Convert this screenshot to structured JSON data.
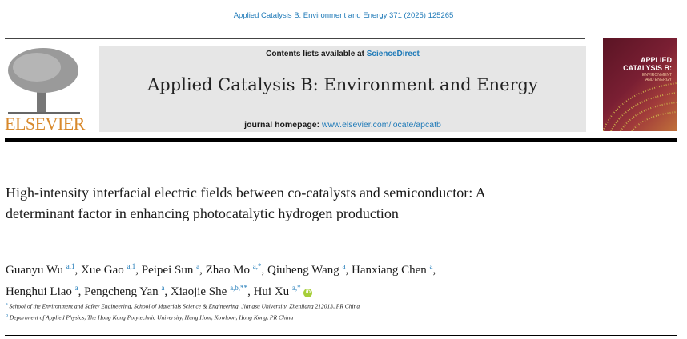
{
  "citation": "Applied Catalysis B: Environment and Energy 371 (2025) 125265",
  "masthead": {
    "contents_prefix": "Contents lists available at ",
    "contents_link": "ScienceDirect",
    "journal_title": "Applied Catalysis B: Environment and Energy",
    "homepage_prefix": "journal homepage: ",
    "homepage_link": "www.elsevier.com/locate/apcatb"
  },
  "publisher_logo": "ELSEVIER",
  "cover": {
    "title_line1": "APPLIED",
    "title_line2": "CATALYSIS B:",
    "sub_line1": "ENVIRONMENT",
    "sub_line2": "AND ENERGY"
  },
  "article": {
    "title": "High-intensity interfacial electric fields between co-catalysts and semiconductor: A determinant factor in enhancing photocatalytic hydrogen production",
    "authors": [
      {
        "name": "Guanyu Wu",
        "sup": "a,1"
      },
      {
        "name": "Xue Gao",
        "sup": "a,1"
      },
      {
        "name": "Peipei Sun",
        "sup": "a"
      },
      {
        "name": "Zhao Mo",
        "sup": "a,*"
      },
      {
        "name": "Qiuheng Wang",
        "sup": "a"
      },
      {
        "name": "Hanxiang Chen",
        "sup": "a"
      },
      {
        "name": "Henghui Liao",
        "sup": "a"
      },
      {
        "name": "Pengcheng Yan",
        "sup": "a"
      },
      {
        "name": "Xiaojie She",
        "sup": "a,b,**"
      },
      {
        "name": "Hui Xu",
        "sup": "a,*"
      }
    ],
    "orcid_icon": "iD",
    "affiliations": [
      {
        "label": "a",
        "text": "School of the Environment and Safety Engineering, School of Materials Science & Engineering, Jiangsu University, Zhenjiang 212013, PR China"
      },
      {
        "label": "b",
        "text": "Department of Applied Physics, The Hong Kong Polytechnic University, Hung Hom, Kowloon, Hong Kong, PR China"
      }
    ]
  },
  "colors": {
    "link": "#1f7ab8",
    "elsevier": "#d8892c",
    "orcid": "#a6ce39",
    "masthead_bg": "#e6e6e6"
  }
}
